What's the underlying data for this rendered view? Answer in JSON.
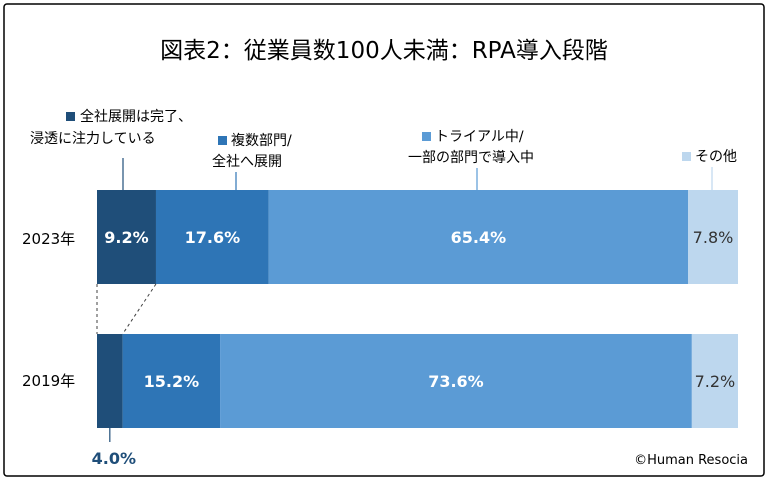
{
  "chart_data": {
    "type": "bar",
    "orientation": "horizontal",
    "stacked": true,
    "title": "図表2：従業員数100人未満：RPA導入段階",
    "categories": [
      "2023年",
      "2019年"
    ],
    "series": [
      {
        "name": "全社展開は完了、浸透に注力している",
        "values": [
          9.2,
          4.0
        ],
        "labels": [
          "9.2%",
          "4.0%"
        ],
        "color": "#1f4e79"
      },
      {
        "name": "複数部門/全社へ展開",
        "values": [
          17.6,
          15.2
        ],
        "labels": [
          "17.6%",
          "15.2%"
        ],
        "color": "#2e75b6"
      },
      {
        "name": "トライアル中/一部の部門で導入中",
        "values": [
          65.4,
          73.6
        ],
        "labels": [
          "65.4%",
          "73.6%"
        ],
        "color": "#5b9bd5"
      },
      {
        "name": "その他",
        "values": [
          7.8,
          7.2
        ],
        "labels": [
          "7.8%",
          "7.2%"
        ],
        "color": "#bdd7ee"
      }
    ],
    "xlim": [
      0,
      100
    ],
    "grid": false,
    "legend": "top"
  },
  "legend_text": {
    "s1_line1": "全社展開は完了、",
    "s1_line2": "浸透に注力している",
    "s2_line1": "複数部門/",
    "s2_line2": "全社へ展開",
    "s3_line1": "トライアル中/",
    "s3_line2": "一部の部門で導入中",
    "s4_line1": "その他"
  },
  "copyright": "©Human Resocia"
}
